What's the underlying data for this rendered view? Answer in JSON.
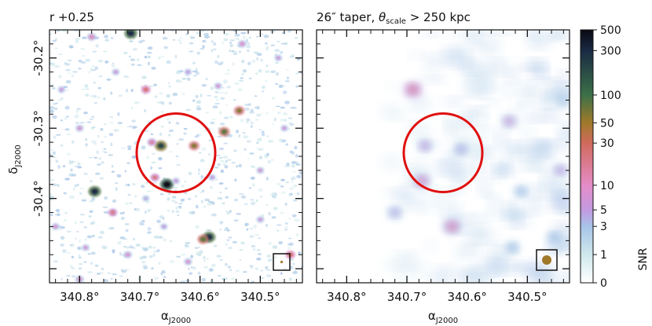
{
  "chart_data": [
    {
      "type": "heatmap",
      "title": "r +0.25",
      "xlabel": "α",
      "xlabel_sub": "J2000",
      "ylabel": "δ",
      "ylabel_sub": "J2000",
      "x_range_deg": [
        340.85,
        340.43
      ],
      "y_range_deg": [
        -30.52,
        -30.16
      ],
      "x_ticks": [
        {
          "value": 340.8,
          "label": "340.8°"
        },
        {
          "value": 340.7,
          "label": "340.7°"
        },
        {
          "value": 340.6,
          "label": "340.6°"
        },
        {
          "value": 340.5,
          "label": "340.5°"
        }
      ],
      "y_ticks": [
        {
          "value": -30.2,
          "label": "-30.2°"
        },
        {
          "value": -30.3,
          "label": "-30.3°"
        },
        {
          "value": -30.4,
          "label": "-30.4°"
        }
      ],
      "circle": {
        "center_ra": 340.64,
        "center_dec": -30.335,
        "radius_deg": 0.075,
        "color": "#e01010"
      },
      "beam": "point",
      "noise": "fine",
      "sources": [
        {
          "ra": 340.69,
          "dec": -30.245,
          "snr": 25
        },
        {
          "ra": 340.665,
          "dec": -30.325,
          "snr": 200
        },
        {
          "ra": 340.68,
          "dec": -30.32,
          "snr": 15
        },
        {
          "ra": 340.61,
          "dec": -30.325,
          "snr": 60
        },
        {
          "ra": 340.655,
          "dec": -30.38,
          "snr": 500
        },
        {
          "ra": 340.675,
          "dec": -30.37,
          "snr": 20
        },
        {
          "ra": 340.64,
          "dec": -30.375,
          "snr": 6
        },
        {
          "ra": 340.56,
          "dec": -30.305,
          "snr": 80
        },
        {
          "ra": 340.535,
          "dec": -30.275,
          "snr": 60
        },
        {
          "ra": 340.585,
          "dec": -30.455,
          "snr": 300
        },
        {
          "ra": 340.595,
          "dec": -30.458,
          "snr": 80
        },
        {
          "ra": 340.775,
          "dec": -30.39,
          "snr": 300
        },
        {
          "ra": 340.745,
          "dec": -30.42,
          "snr": 20
        },
        {
          "ra": 340.715,
          "dec": -30.165,
          "snr": 300
        },
        {
          "ra": 340.45,
          "dec": -30.48,
          "snr": 30
        },
        {
          "ra": 340.8,
          "dec": -30.3,
          "snr": 8
        },
        {
          "ra": 340.78,
          "dec": -30.17,
          "snr": 12
        },
        {
          "ra": 340.53,
          "dec": -30.18,
          "snr": 10
        },
        {
          "ra": 340.83,
          "dec": -30.245,
          "snr": 6
        },
        {
          "ra": 340.84,
          "dec": -30.44,
          "snr": 8
        },
        {
          "ra": 340.74,
          "dec": -30.22,
          "snr": 6
        },
        {
          "ra": 340.62,
          "dec": -30.22,
          "snr": 5
        },
        {
          "ra": 340.5,
          "dec": -30.36,
          "snr": 7
        },
        {
          "ra": 340.62,
          "dec": -30.49,
          "snr": 8
        },
        {
          "ra": 340.72,
          "dec": -30.48,
          "snr": 9
        },
        {
          "ra": 340.79,
          "dec": -30.47,
          "snr": 7
        },
        {
          "ra": 340.46,
          "dec": -30.3,
          "snr": 6
        },
        {
          "ra": 340.58,
          "dec": -30.37,
          "snr": 5
        },
        {
          "ra": 340.5,
          "dec": -30.43,
          "snr": 6
        },
        {
          "ra": 340.8,
          "dec": -30.515,
          "snr": 10
        },
        {
          "ra": 340.66,
          "dec": -30.44,
          "snr": 5
        },
        {
          "ra": 340.57,
          "dec": -30.24,
          "snr": 7
        },
        {
          "ra": 340.69,
          "dec": -30.4,
          "snr": 4
        },
        {
          "ra": 340.47,
          "dec": -30.2,
          "snr": 6
        }
      ]
    },
    {
      "type": "heatmap",
      "title_parts": [
        "26″ taper, ",
        "θ",
        "scale",
        " > 250 kpc"
      ],
      "xlabel": "α",
      "xlabel_sub": "J2000",
      "x_range_deg": [
        340.85,
        340.43
      ],
      "y_range_deg": [
        -30.52,
        -30.16
      ],
      "x_ticks": [
        {
          "value": 340.8,
          "label": "340.8°"
        },
        {
          "value": 340.7,
          "label": "340.7°"
        },
        {
          "value": 340.6,
          "label": "340.6°"
        },
        {
          "value": 340.5,
          "label": "340.5°"
        }
      ],
      "circle": {
        "center_ra": 340.64,
        "center_dec": -30.335,
        "radius_deg": 0.075,
        "color": "#e01010"
      },
      "beam": "large",
      "noise": "smooth",
      "sources": [
        {
          "ra": 340.69,
          "dec": -30.245,
          "snr": 15
        },
        {
          "ra": 340.675,
          "dec": -30.375,
          "snr": 10
        },
        {
          "ra": 340.67,
          "dec": -30.325,
          "snr": 5
        },
        {
          "ra": 340.61,
          "dec": -30.33,
          "snr": 4
        },
        {
          "ra": 340.625,
          "dec": -30.44,
          "snr": 12
        },
        {
          "ra": 340.72,
          "dec": -30.42,
          "snr": 4
        },
        {
          "ra": 340.53,
          "dec": -30.29,
          "snr": 6
        },
        {
          "ra": 340.51,
          "dec": -30.39,
          "snr": 3
        },
        {
          "ra": 340.445,
          "dec": -30.36,
          "snr": 5
        },
        {
          "ra": 340.525,
          "dec": -30.47,
          "snr": 3
        },
        {
          "ra": 340.455,
          "dec": -30.455,
          "snr": 3
        },
        {
          "ra": 340.44,
          "dec": -30.26,
          "snr": 2
        }
      ]
    }
  ],
  "colorbar": {
    "label": "SNR",
    "range": [
      0,
      500
    ],
    "tick_values": [
      0,
      1,
      3,
      5,
      10,
      30,
      50,
      100,
      300,
      500
    ],
    "tick_labels": [
      "0",
      "1",
      "3",
      "5",
      "10",
      "30",
      "50",
      "100",
      "300",
      "500"
    ],
    "colors": [
      "#ffffff",
      "#cfe8ec",
      "#a7c3e8",
      "#c39ae0",
      "#e58cc8",
      "#d06a5c",
      "#a07a2a",
      "#3c7048",
      "#1a2a44",
      "#0a0a12"
    ]
  }
}
